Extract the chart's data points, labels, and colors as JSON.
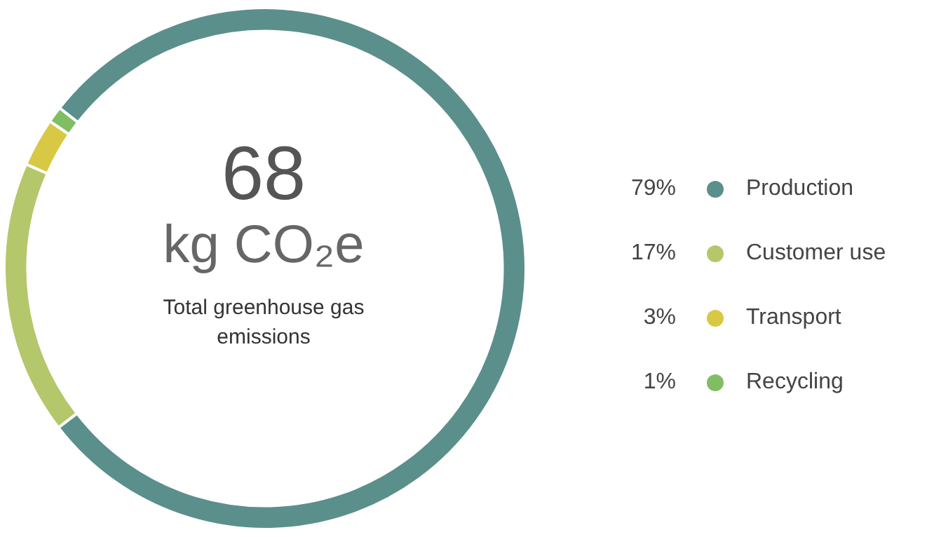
{
  "chart_data": {
    "type": "donut",
    "title": "68",
    "subtitle": "kg CO₂e",
    "annotations": [
      "Total greenhouse gas emissions"
    ],
    "categories": [
      "Production",
      "Customer use",
      "Transport",
      "Recycling"
    ],
    "values": [
      79,
      17,
      3,
      1
    ],
    "colors": [
      "#5b8f8b",
      "#b4c76b",
      "#d8c843",
      "#80bd63"
    ],
    "value_labels": [
      "79%",
      "17%",
      "3%",
      "1%"
    ],
    "legend": "right"
  }
}
